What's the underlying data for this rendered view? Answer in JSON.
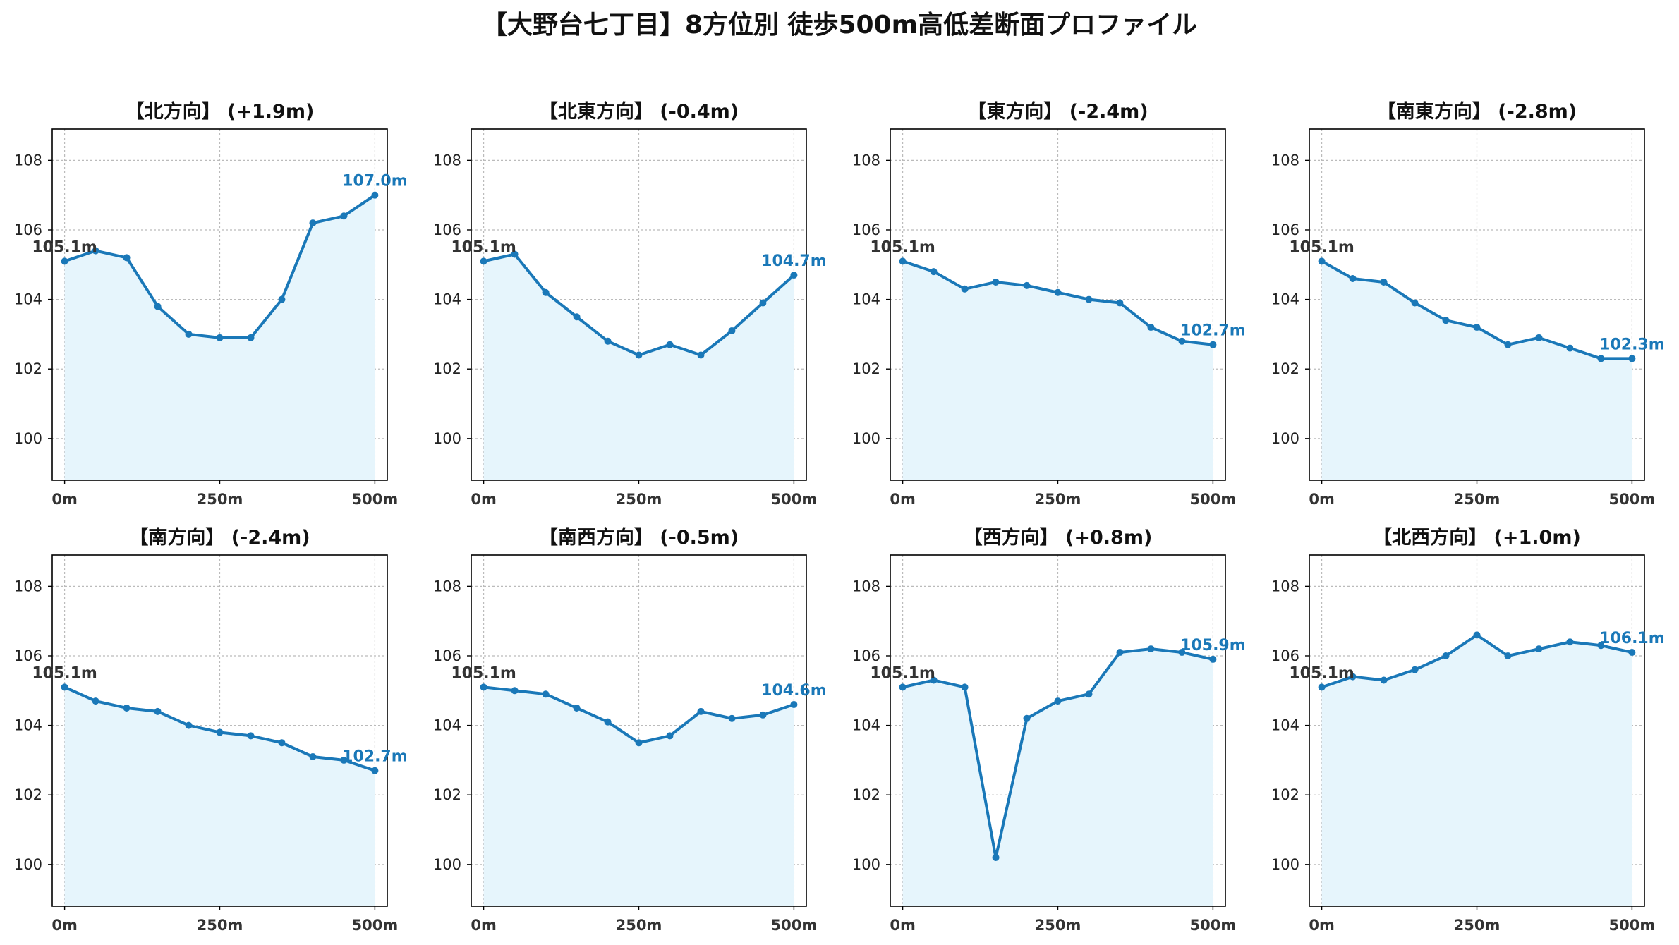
{
  "suptitle": "【大野台七丁目】8方位別 徒歩500m高低差断面プロファイル",
  "style": {
    "line_color": "#1a78b8",
    "fill_color": "#e6f5fc",
    "start_label_color": "#333333",
    "end_label_color": "#1a78b8",
    "grid_color": "#bbbbbb"
  },
  "chart_data": [
    {
      "type": "area",
      "title": "【北方向】 (+1.9m)",
      "x": [
        0,
        50,
        100,
        150,
        200,
        250,
        300,
        350,
        400,
        450,
        500
      ],
      "y": [
        105.1,
        105.4,
        105.2,
        103.8,
        103.0,
        102.9,
        102.9,
        104.0,
        106.2,
        106.4,
        107.0
      ],
      "start_label": "105.1m",
      "end_label": "107.0m",
      "xticks": [
        "0m",
        "250m",
        "500m"
      ],
      "yticks": [
        "100",
        "102",
        "104",
        "106",
        "108"
      ],
      "xlim": [
        -20,
        520
      ],
      "ylim": [
        98.8,
        108.9
      ],
      "grid": true
    },
    {
      "type": "area",
      "title": "【北東方向】 (-0.4m)",
      "x": [
        0,
        50,
        100,
        150,
        200,
        250,
        300,
        350,
        400,
        450,
        500
      ],
      "y": [
        105.1,
        105.3,
        104.2,
        103.5,
        102.8,
        102.4,
        102.7,
        102.4,
        103.1,
        103.9,
        104.7
      ],
      "start_label": "105.1m",
      "end_label": "104.7m",
      "xticks": [
        "0m",
        "250m",
        "500m"
      ],
      "yticks": [
        "100",
        "102",
        "104",
        "106",
        "108"
      ],
      "xlim": [
        -20,
        520
      ],
      "ylim": [
        98.8,
        108.9
      ],
      "grid": true
    },
    {
      "type": "area",
      "title": "【東方向】 (-2.4m)",
      "x": [
        0,
        50,
        100,
        150,
        200,
        250,
        300,
        350,
        400,
        450,
        500
      ],
      "y": [
        105.1,
        104.8,
        104.3,
        104.5,
        104.4,
        104.2,
        104.0,
        103.9,
        103.2,
        102.8,
        102.7
      ],
      "start_label": "105.1m",
      "end_label": "102.7m",
      "xticks": [
        "0m",
        "250m",
        "500m"
      ],
      "yticks": [
        "100",
        "102",
        "104",
        "106",
        "108"
      ],
      "xlim": [
        -20,
        520
      ],
      "ylim": [
        98.8,
        108.9
      ],
      "grid": true
    },
    {
      "type": "area",
      "title": "【南東方向】 (-2.8m)",
      "x": [
        0,
        50,
        100,
        150,
        200,
        250,
        300,
        350,
        400,
        450,
        500
      ],
      "y": [
        105.1,
        104.6,
        104.5,
        103.9,
        103.4,
        103.2,
        102.7,
        102.9,
        102.6,
        102.3,
        102.3
      ],
      "start_label": "105.1m",
      "end_label": "102.3m",
      "xticks": [
        "0m",
        "250m",
        "500m"
      ],
      "yticks": [
        "100",
        "102",
        "104",
        "106",
        "108"
      ],
      "xlim": [
        -20,
        520
      ],
      "ylim": [
        98.8,
        108.9
      ],
      "grid": true
    },
    {
      "type": "area",
      "title": "【南方向】 (-2.4m)",
      "x": [
        0,
        50,
        100,
        150,
        200,
        250,
        300,
        350,
        400,
        450,
        500
      ],
      "y": [
        105.1,
        104.7,
        104.5,
        104.4,
        104.0,
        103.8,
        103.7,
        103.5,
        103.1,
        103.0,
        102.7
      ],
      "start_label": "105.1m",
      "end_label": "102.7m",
      "xticks": [
        "0m",
        "250m",
        "500m"
      ],
      "yticks": [
        "100",
        "102",
        "104",
        "106",
        "108"
      ],
      "xlim": [
        -20,
        520
      ],
      "ylim": [
        98.8,
        108.9
      ],
      "grid": true
    },
    {
      "type": "area",
      "title": "【南西方向】 (-0.5m)",
      "x": [
        0,
        50,
        100,
        150,
        200,
        250,
        300,
        350,
        400,
        450,
        500
      ],
      "y": [
        105.1,
        105.0,
        104.9,
        104.5,
        104.1,
        103.5,
        103.7,
        104.4,
        104.2,
        104.3,
        104.6
      ],
      "start_label": "105.1m",
      "end_label": "104.6m",
      "xticks": [
        "0m",
        "250m",
        "500m"
      ],
      "yticks": [
        "100",
        "102",
        "104",
        "106",
        "108"
      ],
      "xlim": [
        -20,
        520
      ],
      "ylim": [
        98.8,
        108.9
      ],
      "grid": true
    },
    {
      "type": "area",
      "title": "【西方向】 (+0.8m)",
      "x": [
        0,
        50,
        100,
        150,
        200,
        250,
        300,
        350,
        400,
        450,
        500
      ],
      "y": [
        105.1,
        105.3,
        105.1,
        100.2,
        104.2,
        104.7,
        104.9,
        106.1,
        106.2,
        106.1,
        105.9
      ],
      "start_label": "105.1m",
      "end_label": "105.9m",
      "xticks": [
        "0m",
        "250m",
        "500m"
      ],
      "yticks": [
        "100",
        "102",
        "104",
        "106",
        "108"
      ],
      "xlim": [
        -20,
        520
      ],
      "ylim": [
        98.8,
        108.9
      ],
      "grid": true
    },
    {
      "type": "area",
      "title": "【北西方向】 (+1.0m)",
      "x": [
        0,
        50,
        100,
        150,
        200,
        250,
        300,
        350,
        400,
        450,
        500
      ],
      "y": [
        105.1,
        105.4,
        105.3,
        105.6,
        106.0,
        106.6,
        106.0,
        106.2,
        106.4,
        106.3,
        106.1
      ],
      "start_label": "105.1m",
      "end_label": "106.1m",
      "xticks": [
        "0m",
        "250m",
        "500m"
      ],
      "yticks": [
        "100",
        "102",
        "104",
        "106",
        "108"
      ],
      "xlim": [
        -20,
        520
      ],
      "ylim": [
        98.8,
        108.9
      ],
      "grid": true
    }
  ]
}
